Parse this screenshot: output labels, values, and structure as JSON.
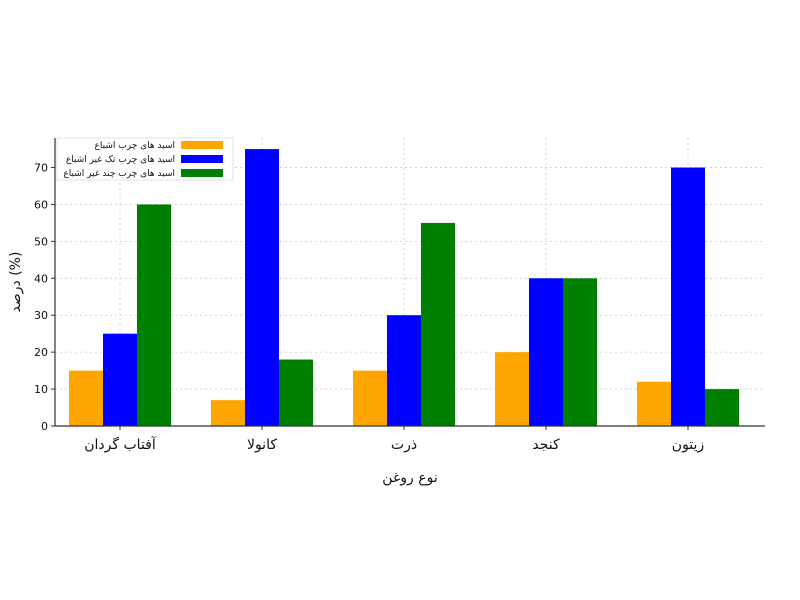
{
  "chart_data": {
    "type": "bar",
    "categories": [
      "آفتاب گردان",
      "کانولا",
      "ذرت",
      "کنجد",
      "زیتون"
    ],
    "series": [
      {
        "name": "اسید های چرب اشباع",
        "color": "#FFA500",
        "values": [
          15,
          7,
          15,
          20,
          12
        ]
      },
      {
        "name": "اسید های چرب تک غیر اشباع",
        "color": "#0000FF",
        "values": [
          25,
          75,
          30,
          40,
          70
        ]
      },
      {
        "name": "اسید های چرب چند غیر اشباع",
        "color": "#008000",
        "values": [
          60,
          18,
          55,
          40,
          10
        ]
      }
    ],
    "xlabel": "نوع روغن",
    "ylabel": "درصد (%)",
    "ylim": [
      0,
      78
    ],
    "yticks": [
      0,
      10,
      20,
      30,
      40,
      50,
      60,
      70
    ],
    "grid": true,
    "legend_position": "top-left"
  }
}
